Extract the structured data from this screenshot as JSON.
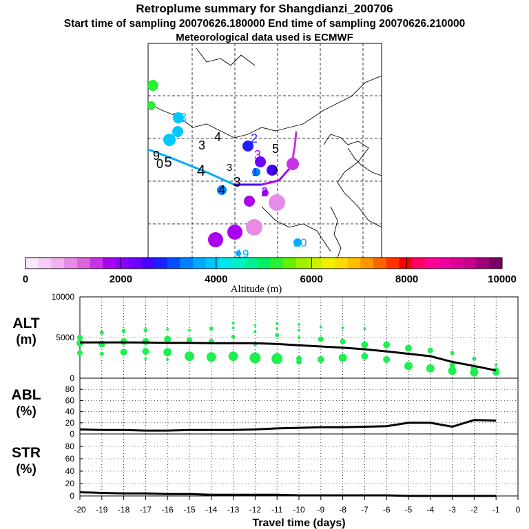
{
  "header": {
    "title": "Retroplume summary for Shangdianzi_200706",
    "sampling": "Start time of sampling 20070626.180000     End time of sampling 20070626.210000",
    "met": "Meteorological data used is ECMWF"
  },
  "colorbar": {
    "ticks": [
      "0",
      "2000",
      "4000",
      "6000",
      "8000",
      "10000"
    ],
    "label": "Altitude (m)",
    "colors": [
      "#fbe6fb",
      "#f6ccf6",
      "#f0b2f0",
      "#e68ce6",
      "#dc64dc",
      "#c832e6",
      "#aa00f0",
      "#8c00ff",
      "#6e00ff",
      "#4600ff",
      "#1e1eff",
      "#0050ff",
      "#0082ff",
      "#00aaff",
      "#00c8ff",
      "#00e6f0",
      "#00f0c8",
      "#00f096",
      "#00f064",
      "#28f032",
      "#64f000",
      "#a0f000",
      "#c8f000",
      "#f0f000",
      "#ffdc00",
      "#ffbe00",
      "#ff9600",
      "#ff6400",
      "#ff3200",
      "#ff0000",
      "#ff0064",
      "#ff0096",
      "#f000a0",
      "#dc0096",
      "#c8008c",
      "#a00078",
      "#780064"
    ]
  },
  "map": {
    "plume_labels": [
      {
        "t": "9",
        "c": "#28f032"
      },
      {
        "t": "8",
        "c": "#28f032"
      },
      {
        "t": "7",
        "c": "#00c8ff"
      },
      {
        "t": "3",
        "c": "#00c8ff"
      },
      {
        "t": "5",
        "c": "#00c8ff"
      },
      {
        "t": "6",
        "c": "#00c8ff"
      },
      {
        "t": "3",
        "c": "#000000"
      },
      {
        "t": "4",
        "c": "#000000"
      },
      {
        "t": "2",
        "c": "#1e1eff"
      },
      {
        "t": "5",
        "c": "#000000"
      },
      {
        "t": "3",
        "c": "#8c00ff"
      },
      {
        "t": "9",
        "c": "#000000"
      },
      {
        "t": "0",
        "c": "#000000"
      },
      {
        "t": "5",
        "c": "#000000"
      },
      {
        "t": "4",
        "c": "#000000"
      },
      {
        "t": "3",
        "c": "#000000"
      },
      {
        "t": "2",
        "c": "#6e00ff"
      },
      {
        "t": "1",
        "c": "#1e1eff"
      },
      {
        "t": "0",
        "c": "#4600ff"
      },
      {
        "t": "1",
        "c": "#c832e6"
      },
      {
        "t": "4",
        "c": "#000000"
      },
      {
        "t": "3",
        "c": "#000000"
      },
      {
        "t": "2",
        "c": "#000000"
      },
      {
        "t": "6",
        "c": "#aa00f0"
      },
      {
        "t": "2",
        "c": "#e68ce6"
      },
      {
        "t": "3",
        "c": "#e68ce6"
      },
      {
        "t": "4",
        "c": "#aa00f0"
      },
      {
        "t": "5",
        "c": "#aa00f0"
      },
      {
        "t": "19",
        "c": "#00aaff"
      },
      {
        "t": "20",
        "c": "#00aaff"
      }
    ]
  },
  "axes": {
    "panels": [
      {
        "name": "ALT",
        "unit": "(m)",
        "ymax": 10000,
        "yticks": [
          "0",
          "5000",
          "10000"
        ]
      },
      {
        "name": "ABL",
        "unit": "(%)",
        "ymax": 100,
        "yticks": [
          "0",
          "20",
          "40",
          "60",
          "80"
        ]
      },
      {
        "name": "STR",
        "unit": "(%)",
        "ymax": 100,
        "yticks": [
          "0",
          "20",
          "40",
          "60",
          "80"
        ]
      }
    ],
    "xticks": [
      "-20",
      "-19",
      "-18",
      "-17",
      "-16",
      "-15",
      "-14",
      "-13",
      "-12",
      "-11",
      "-10",
      "-9",
      "-8",
      "-7",
      "-6",
      "-5",
      "-4",
      "-3",
      "-2",
      "-1",
      "0"
    ],
    "xlabel": "Travel time (days)"
  },
  "chart_data": {
    "type": "line",
    "x": [
      -20,
      -19,
      -18,
      -17,
      -16,
      -15,
      -14,
      -13,
      -12,
      -11,
      -10,
      -9,
      -8,
      -7,
      -6,
      -5,
      -4,
      -3,
      -2,
      -1
    ],
    "series": [
      {
        "name": "ALT",
        "unit": "m",
        "values": [
          4400,
          4400,
          4400,
          4380,
          4350,
          4350,
          4300,
          4300,
          4300,
          4200,
          4050,
          3900,
          3750,
          3550,
          3300,
          3000,
          2700,
          2000,
          1500,
          950
        ]
      },
      {
        "name": "ABL",
        "unit": "%",
        "values": [
          8,
          7,
          7,
          6,
          6,
          7,
          7,
          7,
          8,
          10,
          11,
          12,
          12,
          13,
          14,
          20,
          20,
          13,
          25,
          24
        ]
      },
      {
        "name": "STR",
        "unit": "%",
        "values": [
          6,
          5,
          4,
          4,
          3,
          3,
          2,
          2,
          2,
          2,
          1,
          1,
          1,
          1,
          1,
          0,
          0,
          0,
          0,
          0
        ]
      }
    ],
    "alt_points": [
      {
        "x": -20,
        "alts": [
          5000,
          4300,
          3100
        ],
        "sizes": [
          4,
          5,
          4
        ]
      },
      {
        "x": -19,
        "alts": [
          5600,
          4200,
          3000
        ],
        "sizes": [
          3,
          5,
          3
        ]
      },
      {
        "x": -18,
        "alts": [
          5800,
          4500,
          3200
        ],
        "sizes": [
          3,
          5,
          5
        ]
      },
      {
        "x": -17,
        "alts": [
          5900,
          4500,
          3300,
          2400
        ],
        "sizes": [
          3,
          5,
          5,
          2
        ]
      },
      {
        "x": -16,
        "alts": [
          6000,
          4800,
          3200,
          2300
        ],
        "sizes": [
          2,
          5,
          6,
          2
        ]
      },
      {
        "x": -15,
        "alts": [
          5900,
          4700,
          2700
        ],
        "sizes": [
          2,
          4,
          7
        ]
      },
      {
        "x": -14,
        "alts": [
          6100,
          4500,
          2600
        ],
        "sizes": [
          3,
          4,
          7
        ]
      },
      {
        "x": -13,
        "alts": [
          6800,
          6200,
          5100,
          2700
        ],
        "sizes": [
          2,
          2,
          3,
          7
        ]
      },
      {
        "x": -12,
        "alts": [
          6500,
          5700,
          4200,
          2500
        ],
        "sizes": [
          2,
          2,
          3,
          8
        ]
      },
      {
        "x": -11,
        "alts": [
          6700,
          6100,
          5300,
          2400
        ],
        "sizes": [
          2,
          2,
          3,
          8
        ]
      },
      {
        "x": -10,
        "alts": [
          6600,
          5900,
          5000,
          2400,
          2000
        ],
        "sizes": [
          2,
          2,
          2,
          4,
          4
        ]
      },
      {
        "x": -9,
        "alts": [
          6300,
          4800,
          2300
        ],
        "sizes": [
          2,
          4,
          5
        ]
      },
      {
        "x": -8,
        "alts": [
          6200,
          4500,
          2500
        ],
        "sizes": [
          2,
          4,
          6
        ]
      },
      {
        "x": -7,
        "alts": [
          6100,
          4100,
          2700
        ],
        "sizes": [
          2,
          5,
          5
        ]
      },
      {
        "x": -6,
        "alts": [
          6000,
          4100,
          2300
        ],
        "sizes": [
          1,
          5,
          5
        ]
      },
      {
        "x": -5,
        "alts": [
          3700,
          1500
        ],
        "sizes": [
          5,
          6
        ]
      },
      {
        "x": -4,
        "alts": [
          3400,
          1200
        ],
        "sizes": [
          4,
          6
        ]
      },
      {
        "x": -3,
        "alts": [
          3100,
          1600,
          900
        ],
        "sizes": [
          3,
          4,
          6
        ]
      },
      {
        "x": -2,
        "alts": [
          2400,
          1200,
          700
        ],
        "sizes": [
          3,
          5,
          6
        ]
      },
      {
        "x": -1,
        "alts": [
          1600,
          1000,
          700
        ],
        "sizes": [
          2,
          4,
          5
        ]
      }
    ]
  }
}
